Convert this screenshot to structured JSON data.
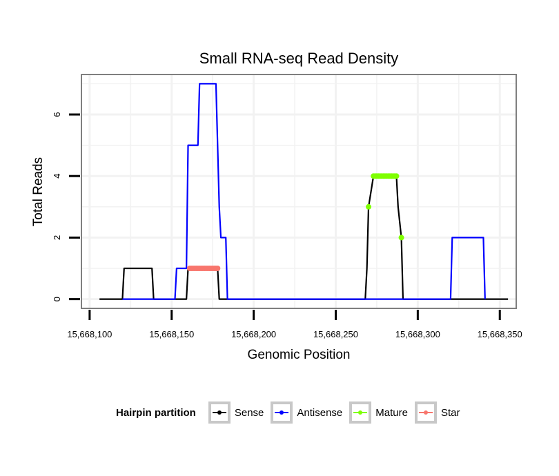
{
  "chart_data": {
    "type": "line",
    "title": "Small RNA-seq Read Density",
    "xlabel": "Genomic Position",
    "ylabel": "Total Reads",
    "xlim": [
      15668095,
      15668360
    ],
    "ylim": [
      -0.3,
      7.3
    ],
    "x_ticks": [
      15668100,
      15668150,
      15668200,
      15668250,
      15668300,
      15668350
    ],
    "x_tick_labels": [
      "15,668,100",
      "15,668,150",
      "15,668,200",
      "15,668,250",
      "15,668,300",
      "15,668,350"
    ],
    "y_ticks": [
      0,
      2,
      4,
      6
    ],
    "y_tick_labels": [
      "0",
      "2",
      "4",
      "6"
    ],
    "grid": true,
    "series": [
      {
        "name": "Sense",
        "color": "#000000",
        "x": [
          15668106,
          15668120,
          15668121,
          15668138,
          15668139,
          15668159,
          15668160,
          15668178,
          15668179,
          15668268,
          15668269,
          15668270,
          15668273,
          15668287,
          15668288,
          15668290,
          15668291,
          15668355
        ],
        "values": [
          0,
          0,
          1,
          1,
          0,
          0,
          1,
          1,
          0,
          0,
          1,
          3,
          4,
          4,
          3,
          2,
          0,
          0
        ]
      },
      {
        "name": "Antisense",
        "color": "#0000ff",
        "x": [
          15668120,
          15668152,
          15668153,
          15668159,
          15668160,
          15668166,
          15668167,
          15668177,
          15668178,
          15668179,
          15668180,
          15668183,
          15668184,
          15668268,
          15668320,
          15668321,
          15668340,
          15668341
        ],
        "values": [
          0,
          0,
          1,
          1,
          5,
          5,
          7,
          7,
          5,
          3,
          2,
          2,
          0,
          0,
          0,
          2,
          2,
          0
        ]
      },
      {
        "name": "Mature",
        "color": "#7fff00",
        "points": [
          [
            15668270,
            3
          ],
          [
            15668273,
            4
          ],
          [
            15668274,
            4
          ],
          [
            15668275,
            4
          ],
          [
            15668276,
            4
          ],
          [
            15668277,
            4
          ],
          [
            15668278,
            4
          ],
          [
            15668279,
            4
          ],
          [
            15668280,
            4
          ],
          [
            15668281,
            4
          ],
          [
            15668282,
            4
          ],
          [
            15668283,
            4
          ],
          [
            15668284,
            4
          ],
          [
            15668285,
            4
          ],
          [
            15668286,
            4
          ],
          [
            15668287,
            4
          ],
          [
            15668290,
            2
          ]
        ]
      },
      {
        "name": "Star",
        "color": "#f8766d",
        "points": [
          [
            15668161,
            1
          ],
          [
            15668162,
            1
          ],
          [
            15668163,
            1
          ],
          [
            15668164,
            1
          ],
          [
            15668165,
            1
          ],
          [
            15668166,
            1
          ],
          [
            15668167,
            1
          ],
          [
            15668168,
            1
          ],
          [
            15668169,
            1
          ],
          [
            15668170,
            1
          ],
          [
            15668171,
            1
          ],
          [
            15668172,
            1
          ],
          [
            15668173,
            1
          ],
          [
            15668174,
            1
          ],
          [
            15668175,
            1
          ],
          [
            15668176,
            1
          ],
          [
            15668177,
            1
          ],
          [
            15668178,
            1
          ]
        ]
      }
    ]
  },
  "legend": {
    "title": "Hairpin partition",
    "items": [
      {
        "label": "Sense",
        "color": "#000000"
      },
      {
        "label": "Antisense",
        "color": "#0000ff"
      },
      {
        "label": "Mature",
        "color": "#7fff00"
      },
      {
        "label": "Star",
        "color": "#f8766d"
      }
    ]
  }
}
